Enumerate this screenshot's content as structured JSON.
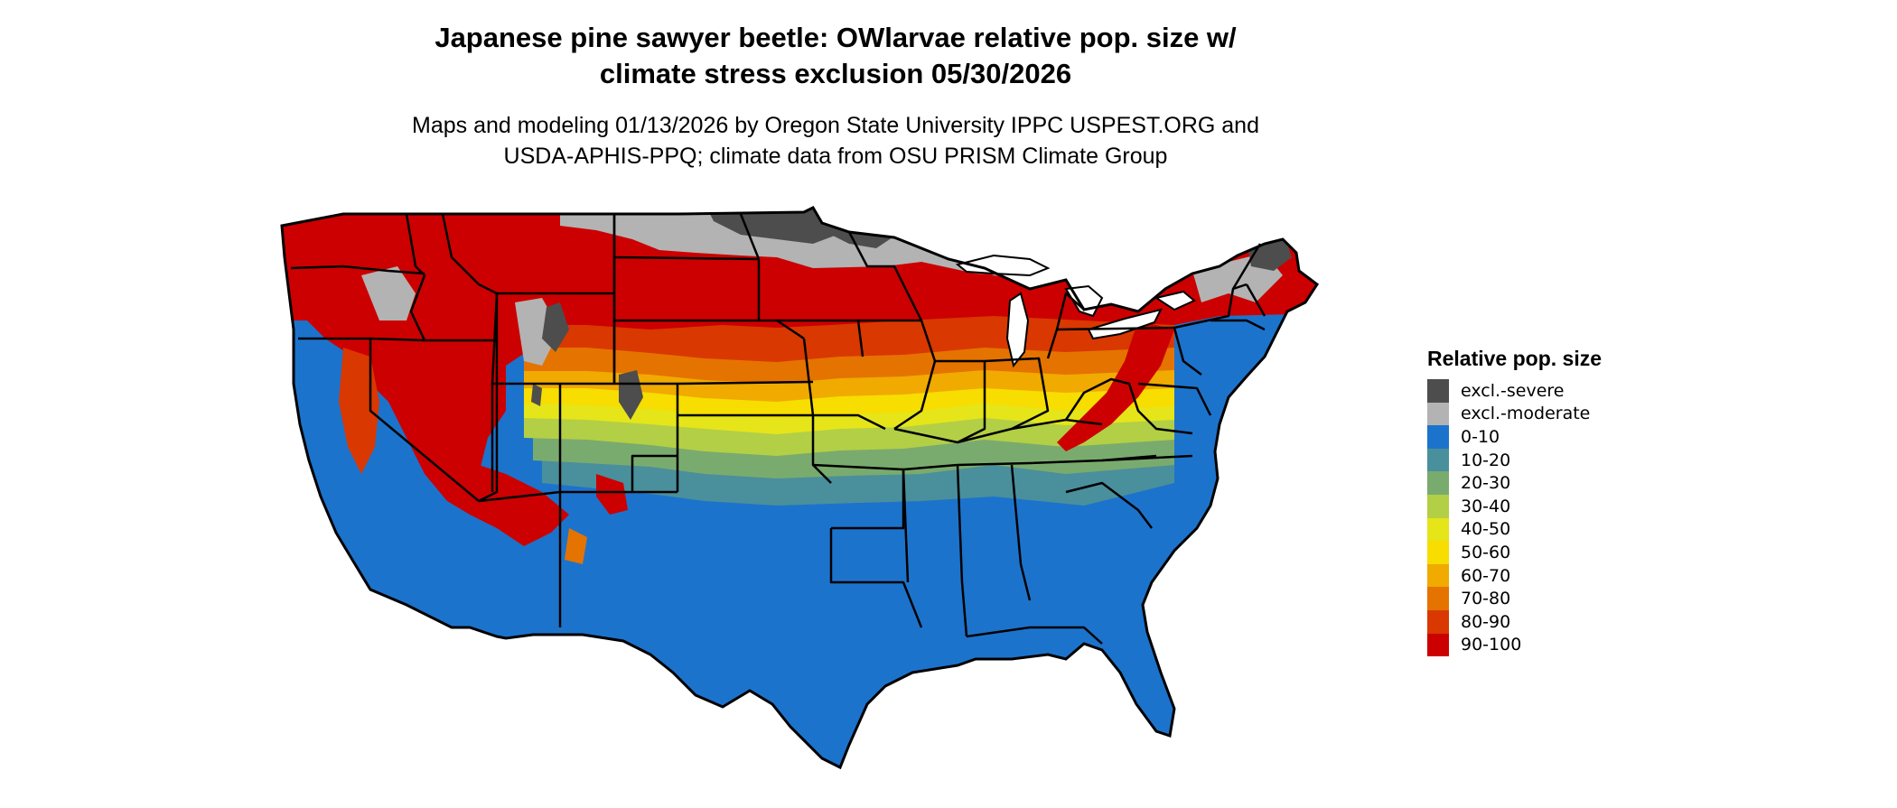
{
  "title": {
    "line1": "Japanese pine sawyer beetle: OWlarvae relative pop. size w/",
    "line2": "climate stress exclusion 05/30/2026"
  },
  "subtitle": {
    "line1": "Maps and modeling 01/13/2026 by Oregon State University IPPC USPEST.ORG and",
    "line2": "USDA-APHIS-PPQ; climate data from OSU PRISM Climate Group"
  },
  "legend": {
    "title": "Relative pop. size",
    "items": [
      {
        "label": "excl.-severe",
        "color": "#4d4d4d"
      },
      {
        "label": "excl.-moderate",
        "color": "#b3b3b3"
      },
      {
        "label": "0-10",
        "color": "#1c73cc"
      },
      {
        "label": "10-20",
        "color": "#4a8f9c"
      },
      {
        "label": "20-30",
        "color": "#7aab6e"
      },
      {
        "label": "30-40",
        "color": "#b3cf45"
      },
      {
        "label": "40-50",
        "color": "#e5e51a"
      },
      {
        "label": "50-60",
        "color": "#f7dd00"
      },
      {
        "label": "60-70",
        "color": "#f0aa00"
      },
      {
        "label": "70-80",
        "color": "#e57300"
      },
      {
        "label": "80-90",
        "color": "#d93800"
      },
      {
        "label": "90-100",
        "color": "#cc0000"
      }
    ]
  }
}
